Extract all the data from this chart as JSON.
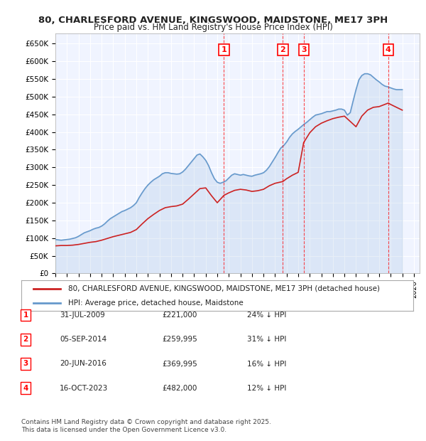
{
  "title": "80, CHARLESFORD AVENUE, KINGSWOOD, MAIDSTONE, ME17 3PH",
  "subtitle": "Price paid vs. HM Land Registry's House Price Index (HPI)",
  "ylabel": "",
  "ylim": [
    0,
    680000
  ],
  "yticks": [
    0,
    50000,
    100000,
    150000,
    200000,
    250000,
    300000,
    350000,
    400000,
    450000,
    500000,
    550000,
    600000,
    650000
  ],
  "ytick_labels": [
    "£0",
    "£50K",
    "£100K",
    "£150K",
    "£200K",
    "£250K",
    "£300K",
    "£350K",
    "£400K",
    "£450K",
    "£500K",
    "£550K",
    "£600K",
    "£650K"
  ],
  "xlim_start": 1995.0,
  "xlim_end": 2026.5,
  "background_color": "#ffffff",
  "plot_bg_color": "#f0f4ff",
  "grid_color": "#ffffff",
  "hpi_line_color": "#6699cc",
  "price_line_color": "#cc2222",
  "transaction_marker_color": "#cc0000",
  "legend_label_price": "80, CHARLESFORD AVENUE, KINGSWOOD, MAIDSTONE, ME17 3PH (detached house)",
  "legend_label_hpi": "HPI: Average price, detached house, Maidstone",
  "footer": "Contains HM Land Registry data © Crown copyright and database right 2025.\nThis data is licensed under the Open Government Licence v3.0.",
  "transactions": [
    {
      "num": 1,
      "date": "31-JUL-2009",
      "price": 221000,
      "pct": "24% ↓ HPI",
      "year": 2009.58
    },
    {
      "num": 2,
      "date": "05-SEP-2014",
      "price": 259995,
      "pct": "31% ↓ HPI",
      "year": 2014.67
    },
    {
      "num": 3,
      "date": "20-JUN-2016",
      "price": 369995,
      "pct": "16% ↓ HPI",
      "year": 2016.47
    },
    {
      "num": 4,
      "date": "16-OCT-2023",
      "price": 482000,
      "pct": "12% ↓ HPI",
      "year": 2023.79
    }
  ],
  "hpi_data_x": [
    1995.0,
    1995.25,
    1995.5,
    1995.75,
    1996.0,
    1996.25,
    1996.5,
    1996.75,
    1997.0,
    1997.25,
    1997.5,
    1997.75,
    1998.0,
    1998.25,
    1998.5,
    1998.75,
    1999.0,
    1999.25,
    1999.5,
    1999.75,
    2000.0,
    2000.25,
    2000.5,
    2000.75,
    2001.0,
    2001.25,
    2001.5,
    2001.75,
    2002.0,
    2002.25,
    2002.5,
    2002.75,
    2003.0,
    2003.25,
    2003.5,
    2003.75,
    2004.0,
    2004.25,
    2004.5,
    2004.75,
    2005.0,
    2005.25,
    2005.5,
    2005.75,
    2006.0,
    2006.25,
    2006.5,
    2006.75,
    2007.0,
    2007.25,
    2007.5,
    2007.75,
    2008.0,
    2008.25,
    2008.5,
    2008.75,
    2009.0,
    2009.25,
    2009.5,
    2009.75,
    2010.0,
    2010.25,
    2010.5,
    2010.75,
    2011.0,
    2011.25,
    2011.5,
    2011.75,
    2012.0,
    2012.25,
    2012.5,
    2012.75,
    2013.0,
    2013.25,
    2013.5,
    2013.75,
    2014.0,
    2014.25,
    2014.5,
    2014.75,
    2015.0,
    2015.25,
    2015.5,
    2015.75,
    2016.0,
    2016.25,
    2016.5,
    2016.75,
    2017.0,
    2017.25,
    2017.5,
    2017.75,
    2018.0,
    2018.25,
    2018.5,
    2018.75,
    2019.0,
    2019.25,
    2019.5,
    2019.75,
    2020.0,
    2020.25,
    2020.5,
    2020.75,
    2021.0,
    2021.25,
    2021.5,
    2021.75,
    2022.0,
    2022.25,
    2022.5,
    2022.75,
    2023.0,
    2023.25,
    2023.5,
    2023.75,
    2024.0,
    2024.25,
    2024.5,
    2024.75,
    2025.0
  ],
  "hpi_data_y": [
    96000,
    95000,
    94000,
    95000,
    96000,
    97000,
    99000,
    101000,
    105000,
    110000,
    115000,
    118000,
    121000,
    125000,
    128000,
    130000,
    134000,
    140000,
    148000,
    155000,
    160000,
    165000,
    170000,
    175000,
    178000,
    182000,
    186000,
    192000,
    200000,
    215000,
    228000,
    240000,
    250000,
    258000,
    265000,
    270000,
    275000,
    282000,
    285000,
    285000,
    283000,
    282000,
    281000,
    282000,
    287000,
    295000,
    305000,
    315000,
    325000,
    335000,
    338000,
    330000,
    320000,
    305000,
    285000,
    268000,
    258000,
    255000,
    258000,
    262000,
    270000,
    278000,
    282000,
    280000,
    278000,
    280000,
    278000,
    276000,
    275000,
    278000,
    280000,
    282000,
    285000,
    292000,
    302000,
    315000,
    328000,
    342000,
    355000,
    362000,
    372000,
    385000,
    395000,
    402000,
    408000,
    415000,
    422000,
    428000,
    435000,
    442000,
    448000,
    450000,
    452000,
    455000,
    458000,
    458000,
    460000,
    462000,
    465000,
    465000,
    462000,
    448000,
    455000,
    488000,
    520000,
    548000,
    560000,
    565000,
    565000,
    562000,
    555000,
    548000,
    542000,
    535000,
    530000,
    528000,
    525000,
    522000,
    520000,
    520000,
    520000
  ],
  "price_data_x": [
    1995.0,
    1995.5,
    1996.0,
    1996.5,
    1997.0,
    1997.5,
    1998.0,
    1998.5,
    1999.0,
    1999.5,
    2000.0,
    2000.5,
    2001.0,
    2001.5,
    2002.0,
    2002.5,
    2003.0,
    2003.5,
    2004.0,
    2004.5,
    2005.0,
    2005.5,
    2006.0,
    2006.5,
    2007.0,
    2007.5,
    2008.0,
    2008.5,
    2009.0,
    2009.58,
    2010.0,
    2010.5,
    2011.0,
    2011.5,
    2012.0,
    2012.5,
    2013.0,
    2013.5,
    2014.0,
    2014.67,
    2015.0,
    2015.5,
    2016.0,
    2016.47,
    2017.0,
    2017.5,
    2018.0,
    2018.5,
    2019.0,
    2019.5,
    2020.0,
    2020.5,
    2021.0,
    2021.5,
    2022.0,
    2022.5,
    2023.0,
    2023.79,
    2024.0,
    2024.5,
    2025.0
  ],
  "price_data_y": [
    78000,
    79000,
    79000,
    80000,
    82000,
    85000,
    88000,
    90000,
    94000,
    99000,
    104000,
    108000,
    112000,
    116000,
    124000,
    140000,
    155000,
    167000,
    178000,
    186000,
    189000,
    191000,
    196000,
    210000,
    225000,
    240000,
    242000,
    220000,
    200000,
    221000,
    228000,
    235000,
    238000,
    236000,
    232000,
    234000,
    238000,
    248000,
    255000,
    259995,
    268000,
    278000,
    286000,
    369995,
    398000,
    415000,
    425000,
    432000,
    438000,
    442000,
    445000,
    430000,
    415000,
    445000,
    462000,
    470000,
    472000,
    482000,
    478000,
    470000,
    462000
  ]
}
